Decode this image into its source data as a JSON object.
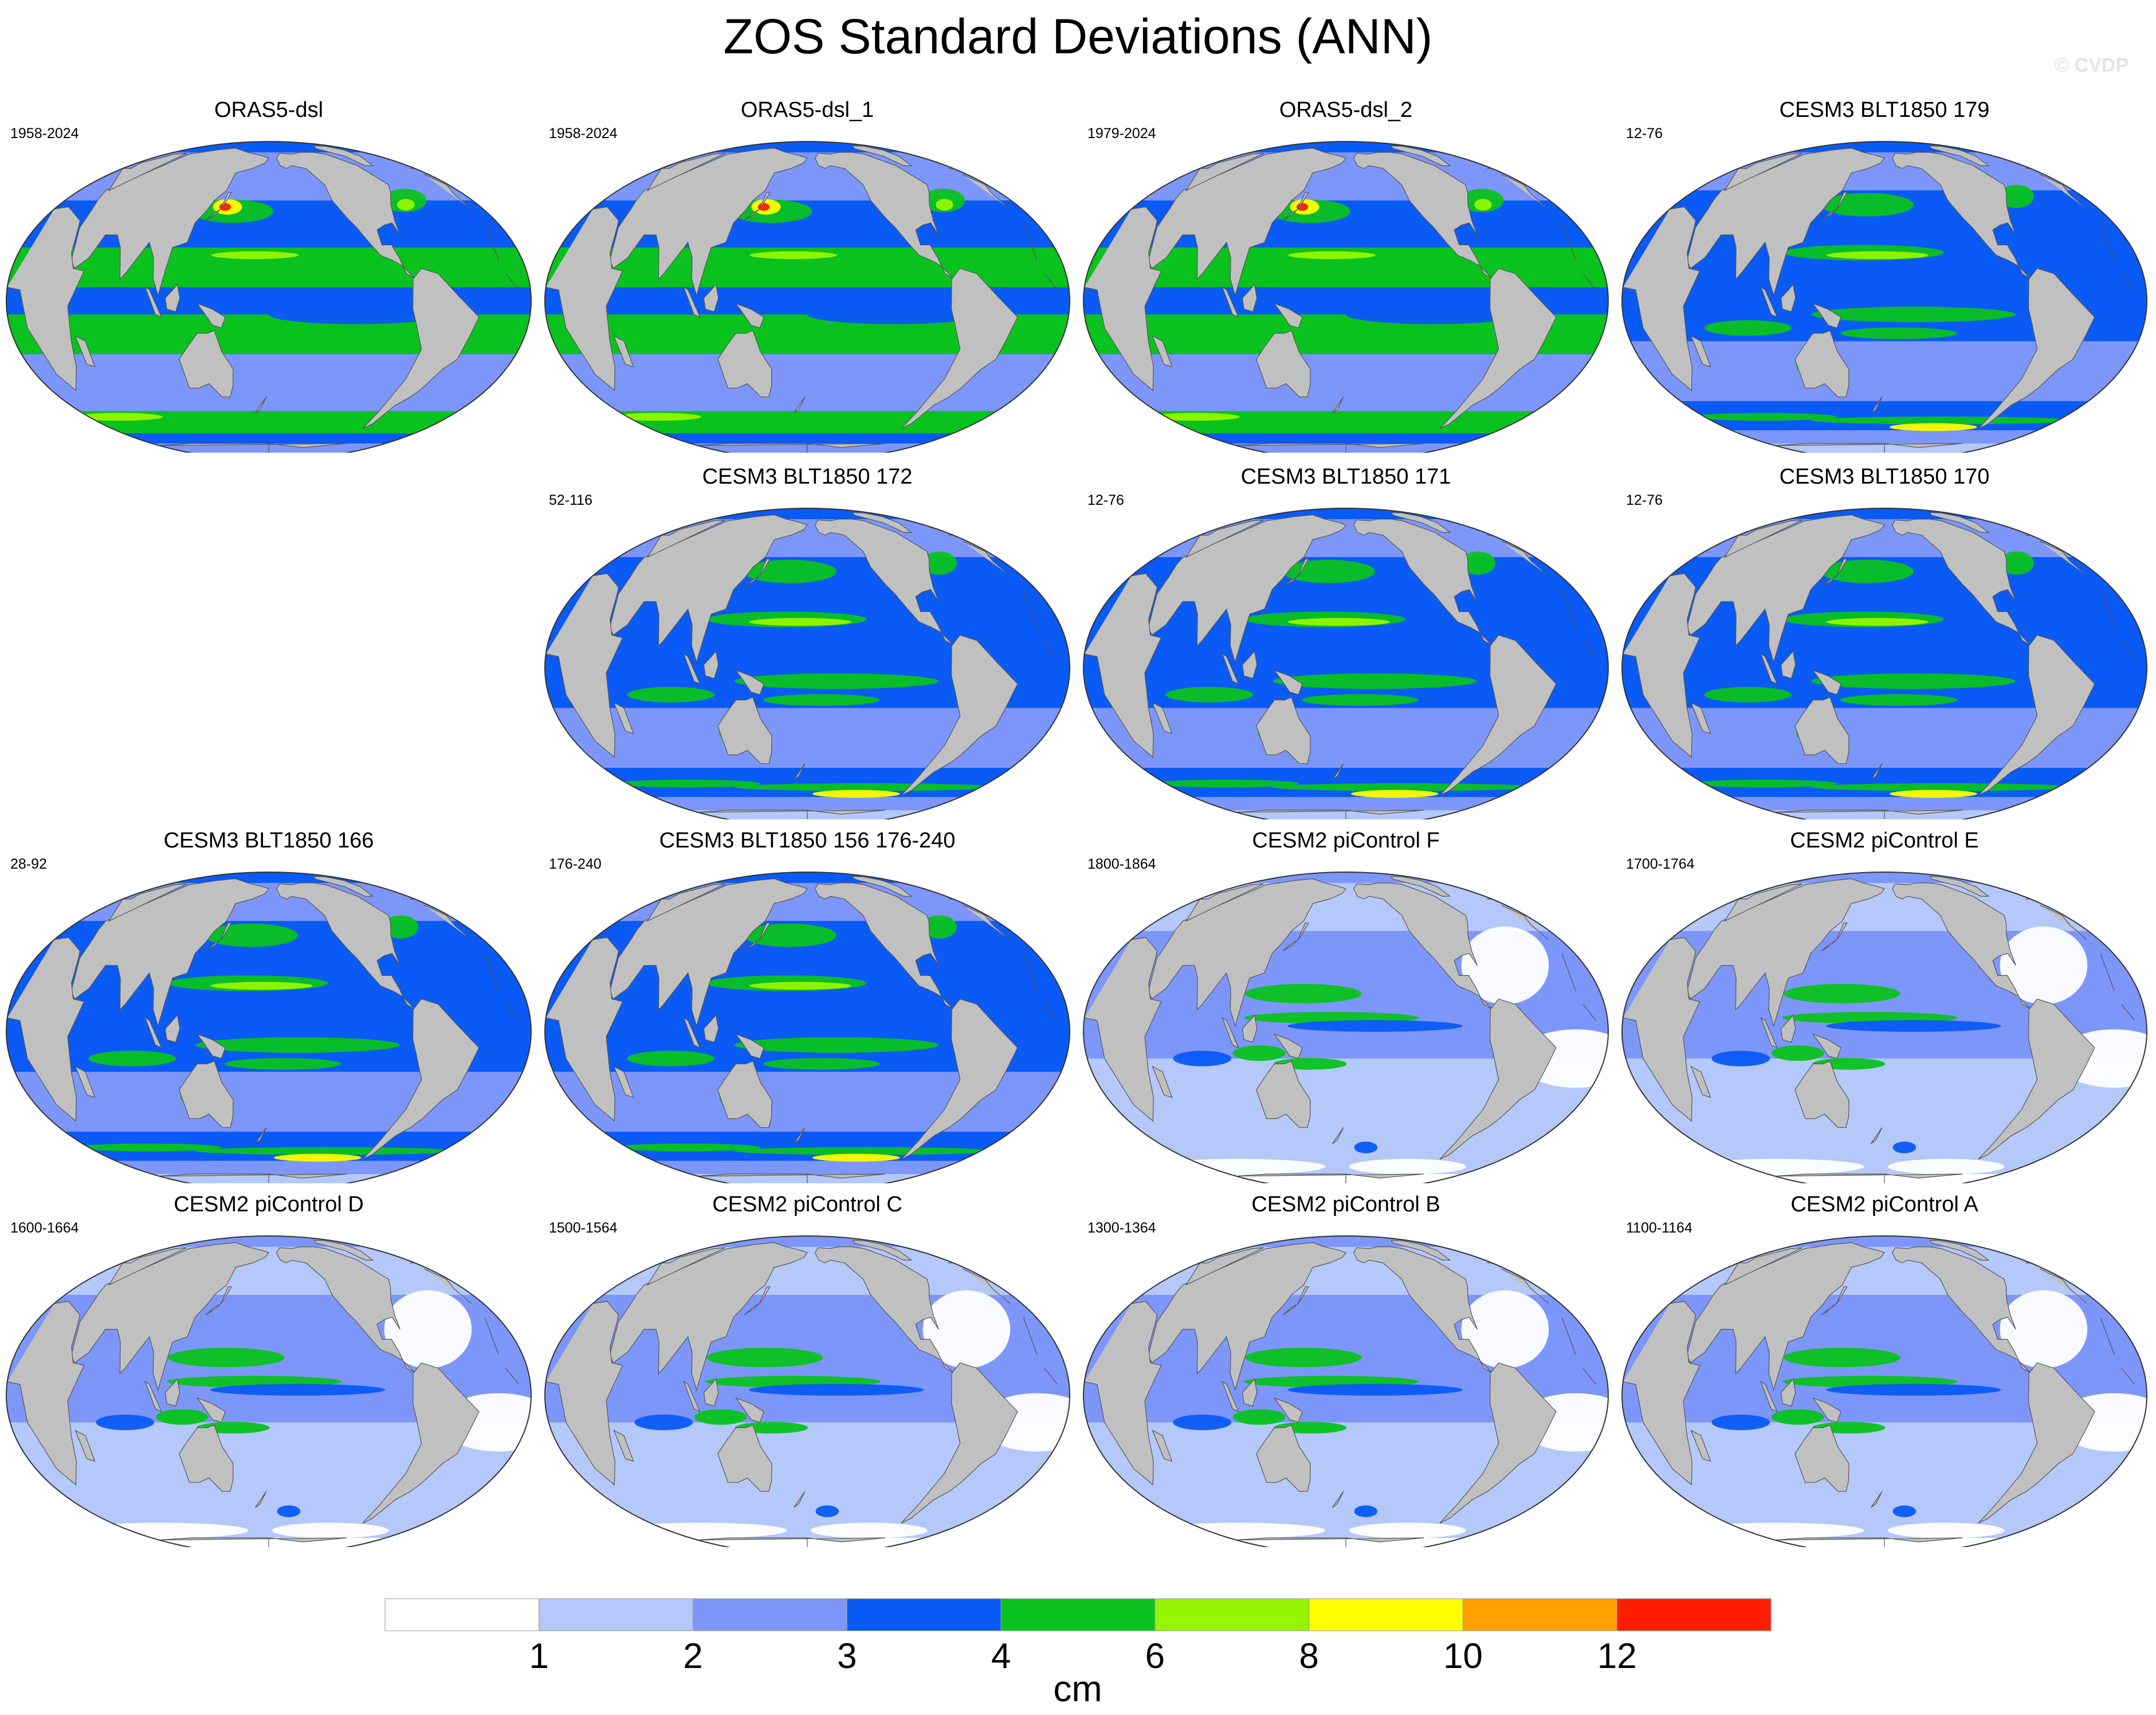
{
  "title": "ZOS Standard Deviations (ANN)",
  "watermark": "© CVDP",
  "panels": [
    {
      "title": "ORAS5-dsl",
      "years": "1958-2024",
      "style": "oras"
    },
    {
      "title": "ORAS5-dsl_1",
      "years": "1958-2024",
      "style": "oras"
    },
    {
      "title": "ORAS5-dsl_2",
      "years": "1979-2024",
      "style": "oras"
    },
    {
      "title": "CESM3 BLT1850 179",
      "years": "12-76",
      "style": "cesm3"
    },
    {
      "title": "CESM3 BLT1850 172",
      "years": "52-116",
      "style": "cesm3"
    },
    {
      "title": "CESM3 BLT1850 171",
      "years": "12-76",
      "style": "cesm3"
    },
    {
      "title": "CESM3 BLT1850 170",
      "years": "12-76",
      "style": "cesm3"
    },
    {
      "title": "CESM3 BLT1850 166",
      "years": "28-92",
      "style": "cesm3"
    },
    {
      "title": "CESM3 BLT1850 156 176-240",
      "years": "176-240",
      "style": "cesm3"
    },
    {
      "title": "CESM2 piControl F",
      "years": "1800-1864",
      "style": "cesm2"
    },
    {
      "title": "CESM2 piControl E",
      "years": "1700-1764",
      "style": "cesm2"
    },
    {
      "title": "CESM2 piControl D",
      "years": "1600-1664",
      "style": "cesm2"
    },
    {
      "title": "CESM2 piControl C",
      "years": "1500-1564",
      "style": "cesm2"
    },
    {
      "title": "CESM2 piControl B",
      "years": "1300-1364",
      "style": "cesm2"
    },
    {
      "title": "CESM2 piControl A",
      "years": "1100-1164",
      "style": "cesm2"
    }
  ],
  "colorbar": {
    "levels": [
      "1",
      "2",
      "3",
      "4",
      "6",
      "8",
      "10",
      "12"
    ],
    "colors": [
      "#ffffff",
      "#b4c8fa",
      "#7d96fa",
      "#0a5af5",
      "#0ac21e",
      "#96f500",
      "#ffff00",
      "#ffa000",
      "#ff1e00"
    ],
    "units": "cm"
  },
  "land_color": "#c0c0c0"
}
